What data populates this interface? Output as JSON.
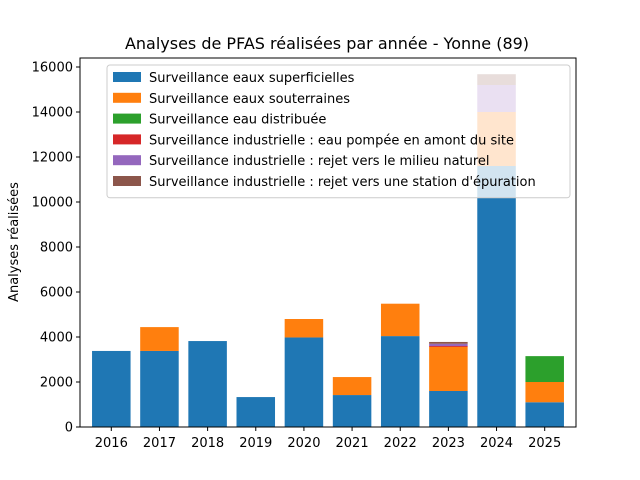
{
  "chart_data": {
    "type": "bar",
    "stacked": true,
    "title": "Analyses de PFAS réalisées par année - Yonne (89)",
    "xlabel": "",
    "ylabel": "Analyses réalisées",
    "ylim": [
      0,
      16000
    ],
    "yticks": [
      0,
      2000,
      4000,
      6000,
      8000,
      10000,
      12000,
      14000,
      16000
    ],
    "categories": [
      "2016",
      "2017",
      "2018",
      "2019",
      "2020",
      "2021",
      "2022",
      "2023",
      "2024",
      "2025"
    ],
    "legend_position": "top",
    "grid": false,
    "series": [
      {
        "name": "Surveillance eaux superficielles",
        "color": "#1f77b4",
        "values": [
          3380,
          3380,
          3820,
          1330,
          3980,
          1420,
          4040,
          1600,
          11600,
          1100
        ]
      },
      {
        "name": "Surveillance eaux souterraines",
        "color": "#ff7f0e",
        "values": [
          0,
          1060,
          0,
          0,
          820,
          800,
          1440,
          1960,
          2400,
          900
        ]
      },
      {
        "name": "Surveillance eau distribuée",
        "color": "#2ca02c",
        "values": [
          0,
          0,
          0,
          0,
          0,
          0,
          0,
          0,
          0,
          1150
        ]
      },
      {
        "name": "Surveillance industrielle : eau pompée en amont du site",
        "color": "#d62728",
        "values": [
          0,
          0,
          0,
          0,
          0,
          0,
          0,
          40,
          0,
          0
        ]
      },
      {
        "name": "Surveillance industrielle : rejet vers le milieu naturel",
        "color": "#9467bd",
        "values": [
          0,
          0,
          0,
          0,
          0,
          0,
          0,
          100,
          1200,
          0
        ]
      },
      {
        "name": "Surveillance industrielle : rejet vers une station d'épuration",
        "color": "#8c564b",
        "values": [
          0,
          0,
          0,
          0,
          0,
          0,
          0,
          80,
          480,
          0
        ]
      }
    ]
  }
}
